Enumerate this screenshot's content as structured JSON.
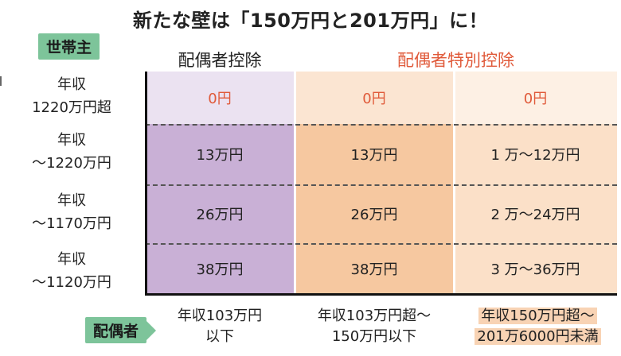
{
  "title": "新たな壁は「150万円と201万円」に！",
  "householder_tag": "世帯主",
  "spouse_tag": "配偶者",
  "headers": {
    "col1": "配偶者控除",
    "col23": "配偶者特別控除"
  },
  "row_labels": [
    {
      "line1": "年収",
      "line2": "1220万円超"
    },
    {
      "line1": "年収",
      "line2": "～1220万円"
    },
    {
      "line1": "年収",
      "line2": "～1170万円"
    },
    {
      "line1": "年収",
      "line2": "～1120万円"
    }
  ],
  "cells": [
    [
      "0円",
      "0円",
      "0円"
    ],
    [
      "13万円",
      "13万円",
      "1 万～12万円"
    ],
    [
      "26万円",
      "26万円",
      "2 万～24万円"
    ],
    [
      "38万円",
      "38万円",
      "3 万～36万円"
    ]
  ],
  "spouse_income": [
    {
      "line1": "年収103万円",
      "line2": "以下"
    },
    {
      "line1": "年収103万円超～",
      "line2": "150万円以下"
    },
    {
      "line1": "年収150万円超～",
      "line2": "201万6000円未満"
    }
  ],
  "colors": {
    "col1_header_bg": "#ebe2f1",
    "col1_body_bg": "#c9b0d6",
    "col2_header_bg": "#fbe5d2",
    "col2_body_bg": "#f6c8a0",
    "col3_header_bg": "#fdf0e4",
    "col3_body_bg": "#fbe0c8",
    "tag_green": "#7dc49a",
    "accent_red": "#e05a3a"
  }
}
